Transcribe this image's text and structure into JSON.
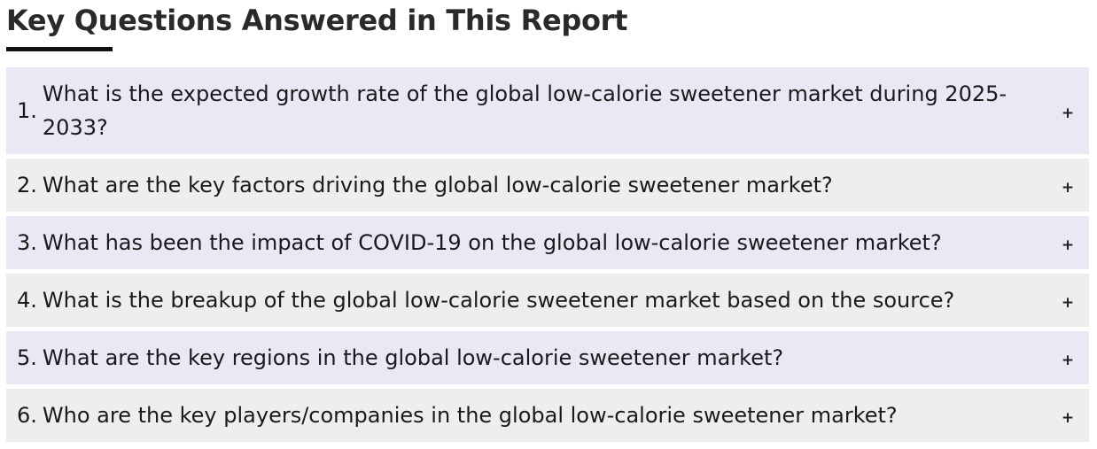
{
  "section": {
    "title": "Key Questions Answered in This Report"
  },
  "faq": {
    "toggle_symbol": "+",
    "items": [
      {
        "number": "1.",
        "question": "What is the expected growth rate of the global low-calorie sweetener market during 2025-2033?"
      },
      {
        "number": "2.",
        "question": "What are the key factors driving the global low-calorie sweetener market?"
      },
      {
        "number": "3.",
        "question": "What has been the impact of COVID-19 on the global low-calorie sweetener market?"
      },
      {
        "number": "4.",
        "question": "What is the breakup of the global low-calorie sweetener market based on the source?"
      },
      {
        "number": "5.",
        "question": "What are the key regions in the global low-calorie sweetener market?"
      },
      {
        "number": "6.",
        "question": "Who are the key players/companies in the global low-calorie sweetener market?"
      }
    ]
  },
  "colors": {
    "odd_row_bg": "#e8e9f5",
    "even_row_bg": "#eeeeee",
    "underline": "#111111"
  }
}
